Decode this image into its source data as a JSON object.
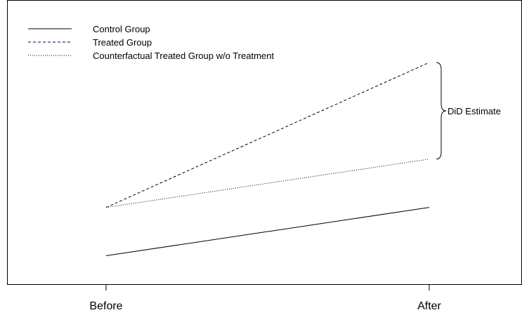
{
  "chart_data": {
    "type": "line",
    "title": "",
    "xlabel": "",
    "ylabel": "",
    "categories": [
      "Before",
      "After"
    ],
    "ylim": [
      0,
      10
    ],
    "grid": false,
    "legend_position": "top-left",
    "series": [
      {
        "name": "Control Group",
        "values": [
          1.0,
          2.7
        ],
        "color": "#000000",
        "dash": "solid"
      },
      {
        "name": "Treated Group",
        "values": [
          2.7,
          7.8
        ],
        "color": "#000000",
        "dash": "dashed"
      },
      {
        "name": "Counterfactual Treated Group w/o Treatment",
        "values": [
          2.7,
          4.4
        ],
        "color": "#000000",
        "dash": "dotted"
      }
    ],
    "annotation": {
      "label": "DiD Estimate",
      "category": "After",
      "from_value": 4.4,
      "to_value": 7.8
    }
  }
}
